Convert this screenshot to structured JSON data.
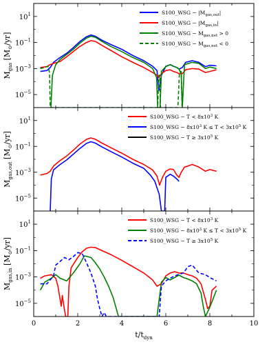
{
  "chart_data": [
    {
      "type": "line",
      "ylabel": "M_gas [M_⊙/yr]",
      "ylabel_parts": {
        "main": "M",
        "sub": "gas",
        "rest": " [M",
        "sub2": "⊙",
        "rest2": "/yr]"
      },
      "yscale": "log",
      "ylim": [
        1e-06,
        100.0
      ],
      "xlim": [
        0,
        10
      ],
      "yticks": [
        {
          "v": 10.0,
          "label": "10",
          "exp": "1"
        },
        {
          "v": 0.1,
          "label": "10",
          "exp": "−1"
        },
        {
          "v": 0.001,
          "label": "10",
          "exp": "−3"
        },
        {
          "v": 1e-05,
          "label": "10",
          "exp": "−5"
        }
      ],
      "legend": {
        "placement": "top-right",
        "entries": [
          {
            "prefix": "S100_WSG − |M",
            "sub": "gas,out",
            "suffix": "|"
          },
          {
            "prefix": "S100_WSG − |M",
            "sub": "gas,in",
            "suffix": "|"
          },
          {
            "prefix": "S100_WSG − M",
            "sub": "gas,net",
            "suffix": " > 0"
          },
          {
            "prefix": "S100_WSG − M",
            "sub": "gas,net",
            "suffix": " < 0"
          }
        ]
      },
      "series": [
        {
          "color": "#0000ff",
          "dash": "solid",
          "x": [
            0.3,
            0.6,
            0.75,
            0.9,
            1.2,
            1.5,
            1.8,
            2.1,
            2.4,
            2.6,
            2.8,
            3.1,
            3.5,
            4.0,
            4.5,
            5.0,
            5.4,
            5.6,
            5.68,
            5.8,
            6.0,
            6.2,
            6.35,
            6.5,
            6.6,
            6.75,
            6.9,
            7.2,
            7.5,
            7.8,
            8.0,
            8.3
          ],
          "y": [
            0.0006,
            0.0007,
            0.0012,
            0.003,
            0.007,
            0.015,
            0.04,
            0.12,
            0.28,
            0.38,
            0.3,
            0.15,
            0.07,
            0.03,
            0.01,
            0.004,
            0.0015,
            0.0007,
            2e-05,
            0.0003,
            0.0015,
            0.002,
            0.0015,
            0.0012,
            0.0009,
            0.0012,
            0.003,
            0.004,
            0.003,
            0.0014,
            0.0018,
            0.0016
          ]
        },
        {
          "color": "#ff0000",
          "dash": "solid",
          "x": [
            0.3,
            0.6,
            0.75,
            0.9,
            1.2,
            1.5,
            1.8,
            2.1,
            2.4,
            2.6,
            2.8,
            3.1,
            3.5,
            4.0,
            4.5,
            5.0,
            5.4,
            5.6,
            5.68,
            5.8,
            6.0,
            6.2,
            6.35,
            6.5,
            6.6,
            6.75,
            6.9,
            7.2,
            7.5,
            7.8,
            8.0,
            8.3
          ],
          "y": [
            0.0012,
            0.0014,
            0.002,
            0.0025,
            0.0035,
            0.008,
            0.02,
            0.05,
            0.1,
            0.14,
            0.12,
            0.06,
            0.025,
            0.008,
            0.003,
            0.0012,
            0.0005,
            0.0003,
            0.0002,
            0.0004,
            0.0007,
            0.0008,
            0.0006,
            0.0005,
            0.0004,
            0.0004,
            0.0008,
            0.001,
            0.0009,
            0.0005,
            0.0006,
            0.0008
          ]
        },
        {
          "color": "#008000",
          "dash": "solid",
          "x": [
            0.78,
            0.85,
            1.0,
            1.2,
            1.5,
            1.8,
            2.1,
            2.4,
            2.6,
            2.8,
            3.1,
            3.5,
            4.0,
            4.5,
            5.0,
            5.4,
            5.58,
            5.63,
            5.74,
            5.8,
            6.0,
            6.2,
            6.35,
            6.5,
            6.6,
            6.7,
            6.75,
            6.85,
            7.2,
            7.5,
            7.8,
            8.0,
            8.3
          ],
          "y": [
            1e-06,
            0.0003,
            0.002,
            0.005,
            0.012,
            0.03,
            0.09,
            0.22,
            0.3,
            0.25,
            0.12,
            0.05,
            0.02,
            0.007,
            0.003,
            0.001,
            0.0002,
            1e-06,
            1e-06,
            0.0006,
            0.0014,
            0.002,
            0.0015,
            0.0012,
            0.0009,
            0.0004,
            1e-06,
            0.002,
            0.003,
            0.0025,
            0.001,
            0.0013,
            0.001
          ]
        },
        {
          "color": "#008000",
          "dash": "dashed",
          "x": [
            0.3,
            0.5,
            0.65,
            0.72,
            0.75,
            5.63,
            5.68,
            5.73,
            5.76,
            6.55,
            6.62,
            6.7,
            6.74
          ],
          "y": [
            0.001,
            0.0012,
            0.0015,
            0.0005,
            1e-06,
            1e-06,
            0.0003,
            0.0003,
            1e-06,
            1e-06,
            0.0005,
            0.0006,
            1e-06
          ]
        }
      ]
    },
    {
      "type": "line",
      "ylabel": "M_gas,out [M_⊙/yr]",
      "ylabel_parts": {
        "main": "M",
        "sub": "gas,out",
        "rest": " [M",
        "sub2": "⊙",
        "rest2": "/yr]"
      },
      "yscale": "log",
      "ylim": [
        1e-06,
        100.0
      ],
      "xlim": [
        0,
        10
      ],
      "yticks": [
        {
          "v": 10.0,
          "label": "10",
          "exp": "1"
        },
        {
          "v": 0.1,
          "label": "10",
          "exp": "−1"
        },
        {
          "v": 0.001,
          "label": "10",
          "exp": "−3"
        },
        {
          "v": 1e-05,
          "label": "10",
          "exp": "−5"
        }
      ],
      "legend": {
        "placement": "top-right",
        "entries": [
          {
            "prefix": "S100_WSG − T < 8x10",
            "sup": "3",
            "suffix": " K"
          },
          {
            "prefix": "S100_WSG − 8x10",
            "sup": "3",
            "suffix": " K ≤ T < 3x10",
            "sup2": "5",
            "suffix2": " K"
          },
          {
            "prefix": "S100_WSG − T ≥ 3x10",
            "sup": "5",
            "suffix": " K"
          }
        ]
      },
      "series": [
        {
          "color": "#ff0000",
          "dash": "solid",
          "x": [
            0.3,
            0.6,
            0.75,
            0.9,
            1.2,
            1.5,
            1.8,
            2.1,
            2.4,
            2.6,
            2.8,
            3.1,
            3.5,
            4.0,
            4.5,
            5.0,
            5.4,
            5.6,
            5.72,
            5.85,
            6.0,
            6.2,
            6.35,
            6.5,
            6.6,
            6.7,
            6.85,
            7.0,
            7.2,
            7.5,
            7.8,
            8.0,
            8.3
          ],
          "y": [
            0.0006,
            0.0008,
            0.0012,
            0.003,
            0.008,
            0.018,
            0.05,
            0.15,
            0.35,
            0.45,
            0.35,
            0.18,
            0.08,
            0.03,
            0.01,
            0.004,
            0.0015,
            0.0005,
            0.0001,
            0.0004,
            0.0012,
            0.0018,
            0.0016,
            0.0006,
            0.0004,
            0.001,
            0.0025,
            0.003,
            0.004,
            0.0025,
            0.0012,
            0.0016,
            0.0012
          ]
        },
        {
          "color": "#0000ff",
          "dash": "solid",
          "x": [
            0.75,
            0.8,
            0.9,
            1.2,
            1.5,
            1.8,
            2.1,
            2.4,
            2.6,
            2.8,
            3.1,
            3.5,
            4.0,
            4.5,
            5.0,
            5.3,
            5.5,
            5.7,
            5.8,
            5.95,
            6.0,
            6.2,
            6.35,
            6.5,
            6.6
          ],
          "y": [
            1e-06,
            0.0003,
            0.0015,
            0.004,
            0.009,
            0.025,
            0.07,
            0.17,
            0.23,
            0.18,
            0.09,
            0.04,
            0.015,
            0.005,
            0.002,
            0.0006,
            0.0002,
            2e-05,
            1e-06,
            1e-06,
            0.0004,
            0.0007,
            0.0005,
            0.0003,
            0.0002
          ]
        }
      ]
    },
    {
      "type": "line",
      "ylabel": "M_gas,in [M_⊙/yr]",
      "ylabel_parts": {
        "main": "M",
        "sub": "gas,in",
        "rest": " [M",
        "sub2": "⊙",
        "rest2": "/yr]"
      },
      "xlabel": "t/t_dyn",
      "xlabel_parts": {
        "main": "t/t",
        "sub": "dyn"
      },
      "yscale": "log",
      "ylim": [
        1e-06,
        100.0
      ],
      "xlim": [
        0,
        10
      ],
      "xticks": [
        0,
        2,
        4,
        6,
        8,
        10
      ],
      "yticks": [
        {
          "v": 10.0,
          "label": "10",
          "exp": "1"
        },
        {
          "v": 0.1,
          "label": "10",
          "exp": "−1"
        },
        {
          "v": 0.001,
          "label": "10",
          "exp": "−3"
        },
        {
          "v": 1e-05,
          "label": "10",
          "exp": "−5"
        }
      ],
      "legend": {
        "placement": "top-right",
        "entries": [
          {
            "prefix": "S100_WSG − T < 8x10",
            "sup": "3",
            "suffix": " K"
          },
          {
            "prefix": "S100_WSG − 8x10",
            "sup": "3",
            "suffix": " K ≤ T < 3x10",
            "sup2": "5",
            "suffix2": " K"
          },
          {
            "prefix": "S100_WSG − T ≥ 3x10",
            "sup": "5",
            "suffix": " K"
          }
        ]
      },
      "series": [
        {
          "color": "#ff0000",
          "dash": "solid",
          "x": [
            0.3,
            0.5,
            0.8,
            1.0,
            1.1,
            1.2,
            1.25,
            1.3,
            1.35,
            1.45,
            1.55,
            1.6,
            1.7,
            2.0,
            2.2,
            2.4,
            2.6,
            2.8,
            3.1,
            3.5,
            4.0,
            4.5,
            5.0,
            5.4,
            5.6,
            5.8,
            6.0,
            6.2,
            6.4,
            6.6,
            6.8,
            7.0,
            7.2,
            7.4,
            7.6,
            7.8,
            7.9,
            8.0,
            8.1,
            8.3
          ],
          "y": [
            0.0008,
            0.0012,
            0.0015,
            0.0008,
            0.0002,
            2e-05,
            6e-06,
            4e-05,
            1e-05,
            1e-06,
            1e-06,
            0.0002,
            0.005,
            0.03,
            0.08,
            0.15,
            0.18,
            0.17,
            0.1,
            0.05,
            0.018,
            0.006,
            0.002,
            0.0006,
            0.0002,
            0.0003,
            0.0012,
            0.002,
            0.0025,
            0.002,
            0.002,
            0.0015,
            0.0012,
            0.0008,
            0.0003,
            2e-05,
            4e-06,
            6e-06,
            0.0001,
            0.0002
          ]
        },
        {
          "color": "#008000",
          "dash": "solid",
          "x": [
            0.3,
            0.5,
            0.8,
            1.0,
            1.2,
            1.5,
            1.8,
            2.1,
            2.3,
            2.6,
            2.8,
            3.0,
            3.2,
            3.4,
            3.6,
            3.75,
            3.85,
            3.9,
            5.6,
            5.8,
            6.0,
            6.2,
            6.4,
            6.6,
            6.8,
            7.0,
            7.2,
            7.4,
            7.6,
            7.7,
            7.8,
            8.0,
            8.3
          ],
          "y": [
            0.0001,
            0.0004,
            0.0008,
            0.0015,
            0.0008,
            0.0005,
            0.002,
            0.01,
            0.04,
            0.03,
            0.012,
            0.004,
            0.001,
            0.0002,
            3e-05,
            4e-06,
            1e-06,
            1e-06,
            1e-06,
            0.0004,
            0.0009,
            0.0006,
            0.0009,
            0.0014,
            0.0009,
            0.0007,
            0.0005,
            0.0003,
            6e-05,
            6e-06,
            1e-06,
            5e-06,
            0.0001
          ]
        },
        {
          "color": "#0000ff",
          "dash": "dashed",
          "x": [
            0.3,
            0.6,
            0.9,
            1.0,
            1.2,
            1.4,
            1.6,
            1.8,
            2.0,
            2.2,
            2.4,
            2.6,
            2.8,
            2.9,
            3.0,
            3.1,
            3.2,
            3.3,
            5.7,
            5.8,
            6.0,
            6.2,
            6.4,
            6.6,
            6.8,
            7.0,
            7.2,
            7.5,
            7.8,
            8.0,
            8.3
          ],
          "y": [
            0.0003,
            0.0003,
            0.0012,
            0.008,
            0.015,
            0.03,
            0.02,
            0.035,
            0.07,
            0.06,
            0.012,
            0.002,
            0.0002,
            2e-05,
            4e-06,
            1e-06,
            2e-06,
            1e-06,
            1e-06,
            0.0002,
            0.0005,
            0.0008,
            0.0012,
            0.0016,
            0.002,
            0.006,
            0.008,
            0.002,
            0.0015,
            0.0009,
            0.0005
          ]
        }
      ]
    }
  ]
}
